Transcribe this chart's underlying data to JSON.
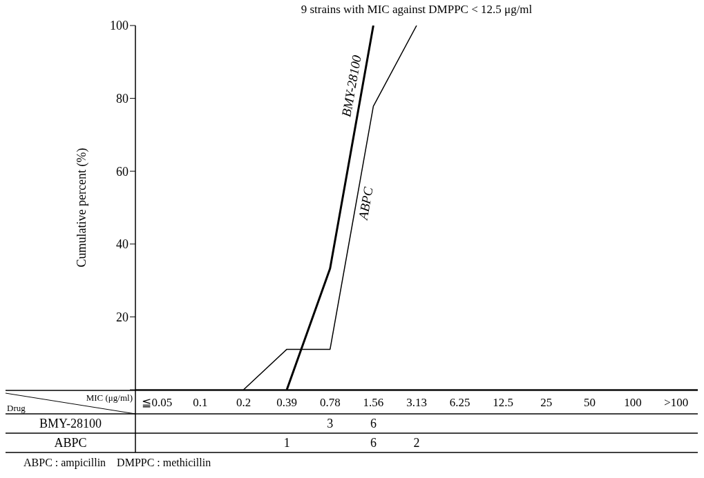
{
  "chart_data": [
    {
      "type": "line",
      "title": "9 strains with MIC against DMPPC < 12.5 μg/ml",
      "ylabel": "Cumulative percent (%)",
      "categories": [
        null,
        null,
        null,
        null,
        null,
        null,
        null,
        null,
        null,
        null,
        null,
        null,
        null
      ],
      "series": [
        {
          "name": "BMY-28100",
          "color": "#000000",
          "values": [
            null,
            null,
            null,
            0,
            33.3,
            100,
            null,
            null,
            null,
            null,
            null,
            null,
            null
          ]
        },
        {
          "name": "ABPC",
          "color": "#000000",
          "values": [
            null,
            null,
            0,
            11.1,
            11.1,
            77.8,
            100,
            null,
            null,
            null,
            null,
            null,
            null
          ]
        }
      ],
      "ylim": [
        0,
        100
      ],
      "yticks": [
        {
          "value": 0,
          "label": null
        },
        20,
        40,
        60,
        80,
        100
      ],
      "tick_labels": "y",
      "grid": false,
      "legend": false,
      "marker": "none",
      "line_style": "solid"
    },
    {
      "type": "heatmap",
      "xlabel": "MIC (μg/ml)",
      "ylabel": "Drug",
      "data_labels": true,
      "categories": [
        "≦0.05",
        "0.1",
        "0.2",
        "0.39",
        "0.78",
        "1.56",
        "3.13",
        "6.25",
        "12.5",
        "25",
        "50",
        "100",
        ">100"
      ],
      "y_categories": [
        "BMY-28100",
        "ABPC"
      ],
      "cells": [
        [
          null,
          null,
          null,
          null,
          3,
          6,
          null,
          null,
          null,
          null,
          null,
          null,
          null
        ],
        [
          null,
          null,
          null,
          1,
          null,
          6,
          2,
          null,
          null,
          null,
          null,
          null,
          null
        ]
      ],
      "annotations": [
        "ABPC : ampicillin    DMPPC : methicillin"
      ]
    }
  ]
}
